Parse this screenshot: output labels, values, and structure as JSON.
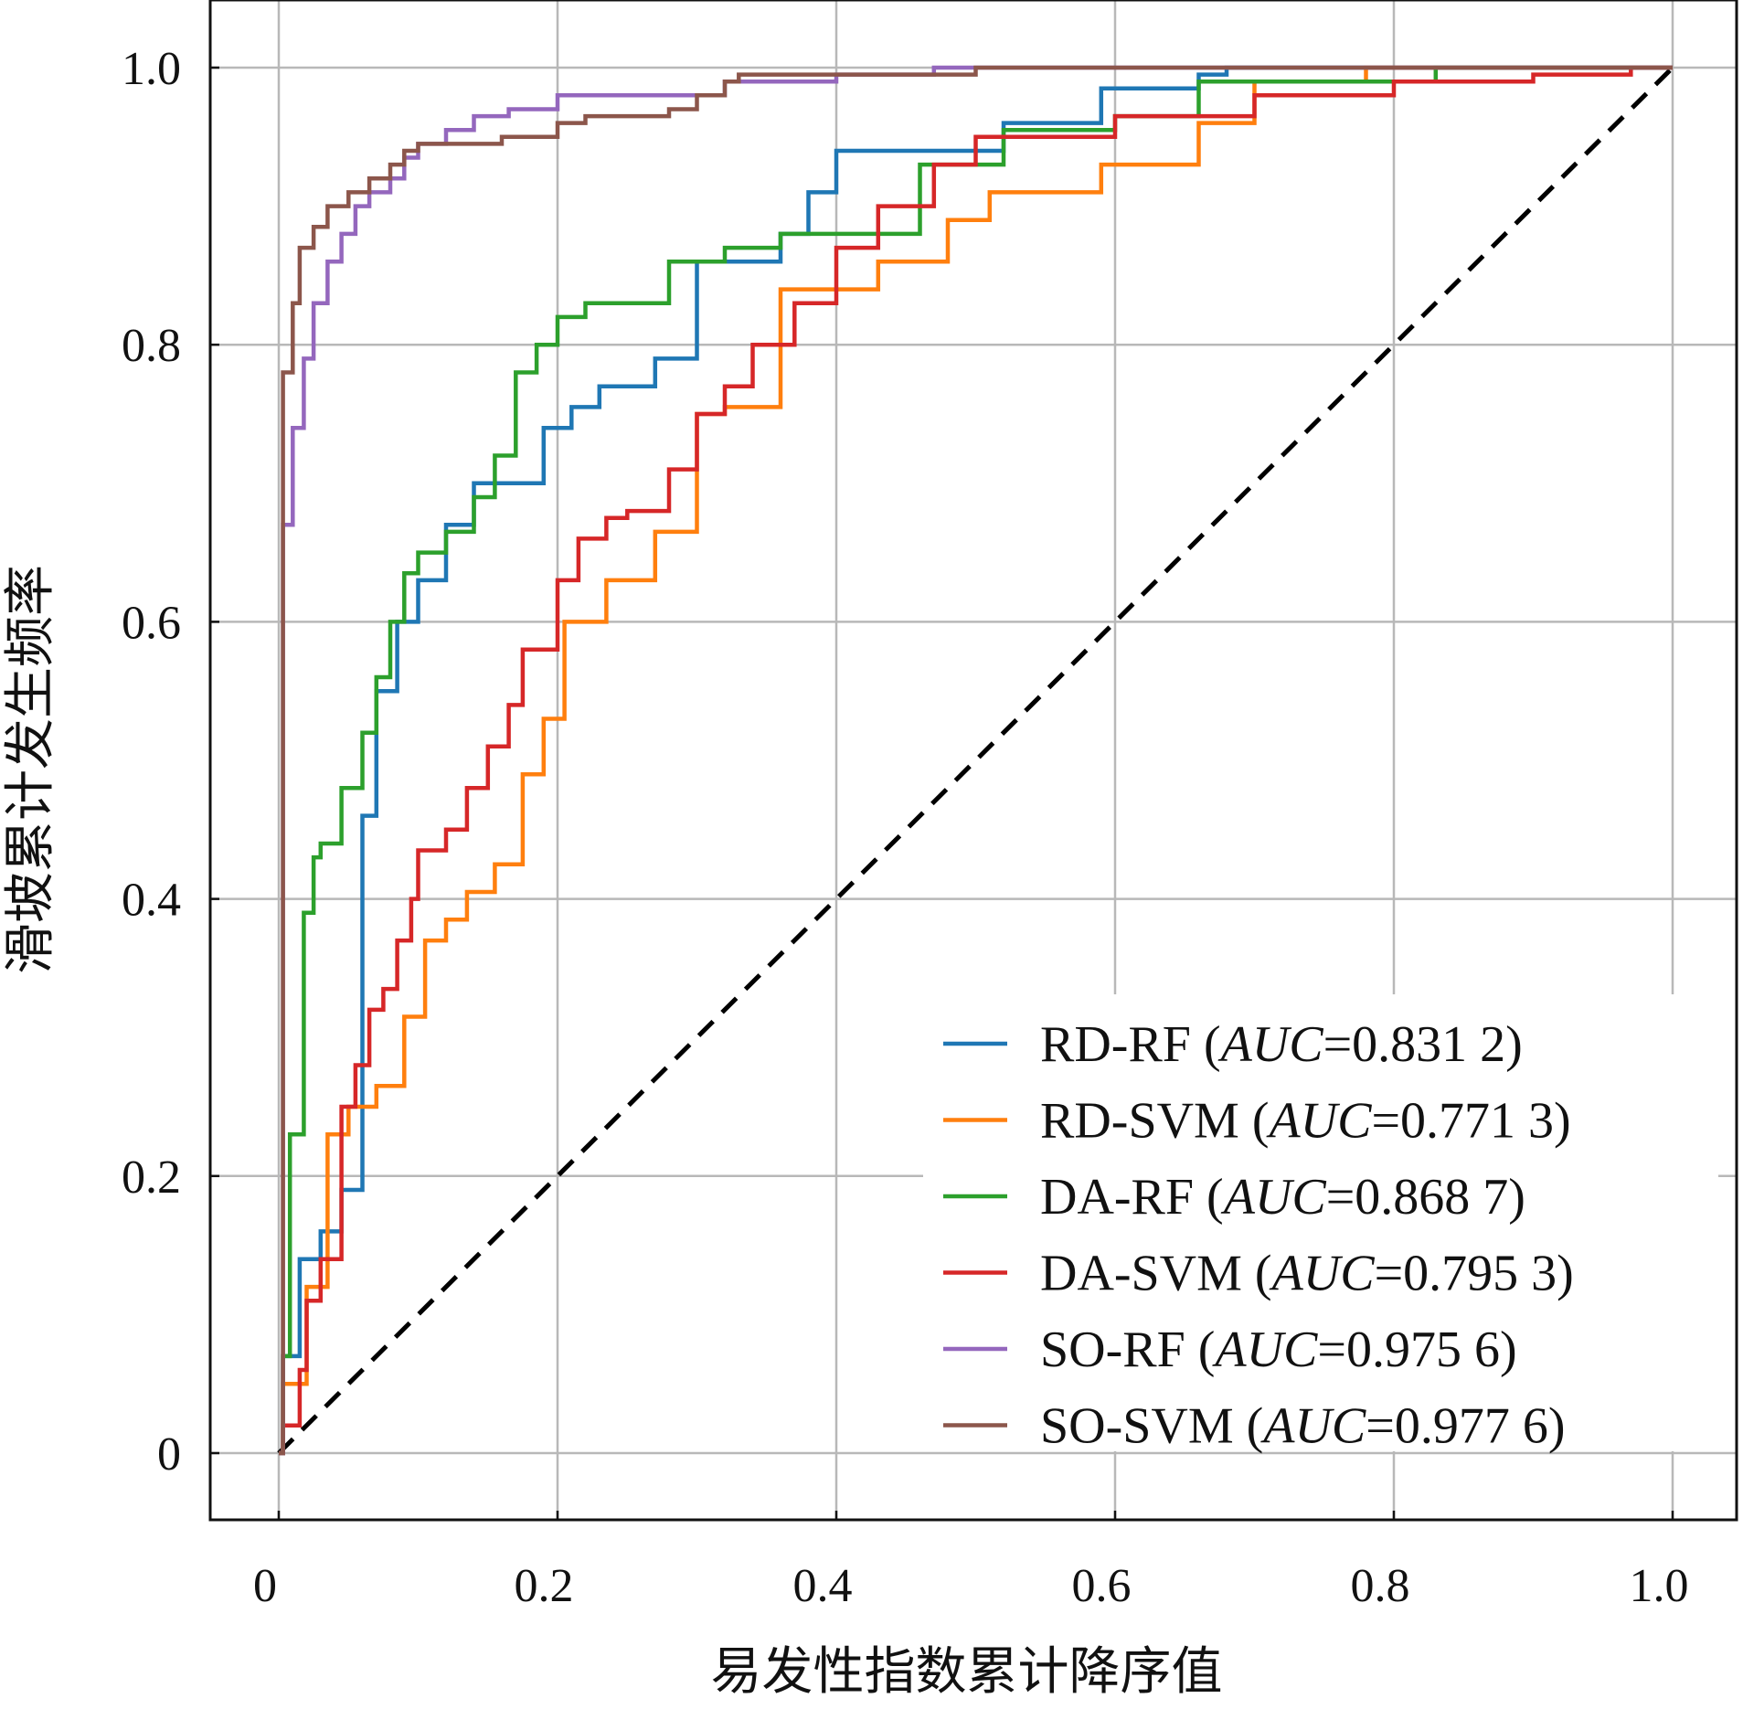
{
  "chart_data": {
    "type": "line",
    "xlabel": "易发性指数累计降序值",
    "ylabel": "滑坡累计发生频率",
    "xlim": [
      -0.05,
      1.05
    ],
    "ylim": [
      -0.05,
      1.03
    ],
    "xticks": [
      0,
      0.2,
      0.4,
      0.6,
      0.8,
      1.0
    ],
    "xtick_labels": [
      "0",
      "0.2",
      "0.4",
      "0.6",
      "0.8",
      "1.0"
    ],
    "yticks": [
      0,
      0.2,
      0.4,
      0.6,
      0.8,
      1.0
    ],
    "ytick_labels": [
      "0",
      "0.2",
      "0.4",
      "0.6",
      "0.8",
      "1.0"
    ],
    "grid": true,
    "legend_position": "bottom-right",
    "reference_line": {
      "name": "random",
      "color": "#000000",
      "style": "dashed",
      "x": [
        0,
        1
      ],
      "y": [
        0,
        1
      ]
    },
    "series": [
      {
        "name": "RD-RF",
        "legend_prefix": "RD-RF (",
        "auc_label": "AUC",
        "auc_value": "=0.831 2)",
        "color": "#1f77b4",
        "x": [
          0,
          0.003,
          0.003,
          0.015,
          0.015,
          0.03,
          0.03,
          0.045,
          0.045,
          0.06,
          0.06,
          0.07,
          0.07,
          0.085,
          0.085,
          0.1,
          0.1,
          0.12,
          0.12,
          0.14,
          0.14,
          0.19,
          0.19,
          0.21,
          0.21,
          0.23,
          0.23,
          0.27,
          0.27,
          0.3,
          0.3,
          0.36,
          0.36,
          0.38,
          0.38,
          0.4,
          0.4,
          0.52,
          0.52,
          0.59,
          0.59,
          0.66,
          0.66,
          0.68,
          0.68,
          1.0
        ],
        "y": [
          0,
          0,
          0.07,
          0.07,
          0.14,
          0.14,
          0.16,
          0.16,
          0.19,
          0.19,
          0.46,
          0.46,
          0.55,
          0.55,
          0.6,
          0.6,
          0.63,
          0.63,
          0.67,
          0.67,
          0.7,
          0.7,
          0.74,
          0.74,
          0.755,
          0.755,
          0.77,
          0.77,
          0.79,
          0.79,
          0.86,
          0.86,
          0.88,
          0.88,
          0.91,
          0.91,
          0.94,
          0.94,
          0.96,
          0.96,
          0.985,
          0.985,
          0.995,
          0.995,
          1.0,
          1.0
        ]
      },
      {
        "name": "RD-SVM",
        "legend_prefix": "RD-SVM (",
        "auc_label": "AUC",
        "auc_value": "=0.771 3)",
        "color": "#ff7f0e",
        "x": [
          0,
          0.003,
          0.003,
          0.02,
          0.02,
          0.035,
          0.035,
          0.05,
          0.05,
          0.07,
          0.07,
          0.09,
          0.09,
          0.105,
          0.105,
          0.12,
          0.12,
          0.135,
          0.135,
          0.155,
          0.155,
          0.175,
          0.175,
          0.19,
          0.19,
          0.205,
          0.205,
          0.235,
          0.235,
          0.27,
          0.27,
          0.3,
          0.3,
          0.32,
          0.32,
          0.36,
          0.36,
          0.43,
          0.43,
          0.48,
          0.48,
          0.51,
          0.51,
          0.59,
          0.59,
          0.66,
          0.66,
          0.7,
          0.7,
          0.78,
          0.78,
          1.0
        ],
        "y": [
          0,
          0,
          0.05,
          0.05,
          0.12,
          0.12,
          0.23,
          0.23,
          0.25,
          0.25,
          0.265,
          0.265,
          0.315,
          0.315,
          0.37,
          0.37,
          0.385,
          0.385,
          0.405,
          0.405,
          0.425,
          0.425,
          0.49,
          0.49,
          0.53,
          0.53,
          0.6,
          0.6,
          0.63,
          0.63,
          0.665,
          0.665,
          0.75,
          0.75,
          0.755,
          0.755,
          0.84,
          0.84,
          0.86,
          0.86,
          0.89,
          0.89,
          0.91,
          0.91,
          0.93,
          0.93,
          0.96,
          0.96,
          0.99,
          0.99,
          1.0,
          1.0
        ]
      },
      {
        "name": "DA-RF",
        "legend_prefix": "DA-RF (",
        "auc_label": "AUC",
        "auc_value": "=0.868 7)",
        "color": "#2ca02c",
        "x": [
          0,
          0.003,
          0.003,
          0.008,
          0.008,
          0.018,
          0.018,
          0.025,
          0.025,
          0.03,
          0.03,
          0.045,
          0.045,
          0.06,
          0.06,
          0.07,
          0.07,
          0.08,
          0.08,
          0.09,
          0.09,
          0.1,
          0.1,
          0.12,
          0.12,
          0.14,
          0.14,
          0.155,
          0.155,
          0.17,
          0.17,
          0.185,
          0.185,
          0.2,
          0.2,
          0.22,
          0.22,
          0.28,
          0.28,
          0.32,
          0.32,
          0.36,
          0.36,
          0.46,
          0.46,
          0.52,
          0.52,
          0.6,
          0.6,
          0.66,
          0.66,
          0.83,
          0.83,
          1.0
        ],
        "y": [
          0,
          0,
          0.07,
          0.07,
          0.23,
          0.23,
          0.39,
          0.39,
          0.43,
          0.43,
          0.44,
          0.44,
          0.48,
          0.48,
          0.52,
          0.52,
          0.56,
          0.56,
          0.6,
          0.6,
          0.635,
          0.635,
          0.65,
          0.65,
          0.665,
          0.665,
          0.69,
          0.69,
          0.72,
          0.72,
          0.78,
          0.78,
          0.8,
          0.8,
          0.82,
          0.82,
          0.83,
          0.83,
          0.86,
          0.86,
          0.87,
          0.87,
          0.88,
          0.88,
          0.93,
          0.93,
          0.955,
          0.955,
          0.965,
          0.965,
          0.99,
          0.99,
          1.0,
          1.0
        ]
      },
      {
        "name": "DA-SVM",
        "legend_prefix": "DA-SVM (",
        "auc_label": "AUC",
        "auc_value": "=0.795 3)",
        "color": "#d62728",
        "x": [
          0,
          0.003,
          0.003,
          0.015,
          0.015,
          0.02,
          0.02,
          0.03,
          0.03,
          0.045,
          0.045,
          0.055,
          0.055,
          0.065,
          0.065,
          0.075,
          0.075,
          0.085,
          0.085,
          0.095,
          0.095,
          0.1,
          0.1,
          0.12,
          0.12,
          0.135,
          0.135,
          0.15,
          0.15,
          0.165,
          0.165,
          0.175,
          0.175,
          0.2,
          0.2,
          0.215,
          0.215,
          0.235,
          0.235,
          0.25,
          0.25,
          0.28,
          0.28,
          0.3,
          0.3,
          0.32,
          0.32,
          0.34,
          0.34,
          0.37,
          0.37,
          0.4,
          0.4,
          0.43,
          0.43,
          0.47,
          0.47,
          0.5,
          0.5,
          0.6,
          0.6,
          0.7,
          0.7,
          0.8,
          0.8,
          0.9,
          0.9,
          0.97,
          0.97,
          1.0
        ],
        "y": [
          0,
          0,
          0.02,
          0.02,
          0.06,
          0.06,
          0.11,
          0.11,
          0.14,
          0.14,
          0.25,
          0.25,
          0.28,
          0.28,
          0.32,
          0.32,
          0.335,
          0.335,
          0.37,
          0.37,
          0.4,
          0.4,
          0.435,
          0.435,
          0.45,
          0.45,
          0.48,
          0.48,
          0.51,
          0.51,
          0.54,
          0.54,
          0.58,
          0.58,
          0.63,
          0.63,
          0.66,
          0.66,
          0.675,
          0.675,
          0.68,
          0.68,
          0.71,
          0.71,
          0.75,
          0.75,
          0.77,
          0.77,
          0.8,
          0.8,
          0.83,
          0.83,
          0.87,
          0.87,
          0.9,
          0.9,
          0.93,
          0.93,
          0.95,
          0.95,
          0.965,
          0.965,
          0.98,
          0.98,
          0.99,
          0.99,
          0.995,
          0.995,
          1.0,
          1.0
        ]
      },
      {
        "name": "SO-RF",
        "legend_prefix": "SO-RF (",
        "auc_label": "AUC",
        "auc_value": "=0.975 6)",
        "color": "#9467bd",
        "x": [
          0,
          0.003,
          0.003,
          0.01,
          0.01,
          0.018,
          0.018,
          0.025,
          0.025,
          0.035,
          0.035,
          0.045,
          0.045,
          0.055,
          0.055,
          0.065,
          0.065,
          0.08,
          0.08,
          0.09,
          0.09,
          0.1,
          0.1,
          0.12,
          0.12,
          0.14,
          0.14,
          0.165,
          0.165,
          0.2,
          0.2,
          0.32,
          0.32,
          0.4,
          0.4,
          0.47,
          0.47,
          0.74,
          0.74,
          1.0
        ],
        "y": [
          0,
          0,
          0.67,
          0.67,
          0.74,
          0.74,
          0.79,
          0.79,
          0.83,
          0.83,
          0.86,
          0.86,
          0.88,
          0.88,
          0.9,
          0.9,
          0.91,
          0.91,
          0.92,
          0.92,
          0.935,
          0.935,
          0.945,
          0.945,
          0.955,
          0.955,
          0.965,
          0.965,
          0.97,
          0.97,
          0.98,
          0.98,
          0.99,
          0.99,
          0.995,
          0.995,
          1.0,
          1.0,
          1.0,
          1.0
        ]
      },
      {
        "name": "SO-SVM",
        "legend_prefix": "SO-SVM (",
        "auc_label": "AUC",
        "auc_value": "=0.977 6)",
        "color": "#8c564b",
        "x": [
          0,
          0.003,
          0.003,
          0.01,
          0.01,
          0.015,
          0.015,
          0.025,
          0.025,
          0.035,
          0.035,
          0.05,
          0.05,
          0.065,
          0.065,
          0.08,
          0.08,
          0.09,
          0.09,
          0.1,
          0.1,
          0.16,
          0.16,
          0.2,
          0.2,
          0.22,
          0.22,
          0.28,
          0.28,
          0.3,
          0.3,
          0.32,
          0.32,
          0.33,
          0.33,
          0.5,
          0.5,
          1.0
        ],
        "y": [
          0,
          0,
          0.78,
          0.78,
          0.83,
          0.83,
          0.87,
          0.87,
          0.885,
          0.885,
          0.9,
          0.9,
          0.91,
          0.91,
          0.92,
          0.92,
          0.93,
          0.93,
          0.94,
          0.94,
          0.945,
          0.945,
          0.95,
          0.95,
          0.96,
          0.96,
          0.965,
          0.965,
          0.97,
          0.97,
          0.98,
          0.98,
          0.99,
          0.99,
          0.995,
          0.995,
          1.0,
          1.0
        ]
      }
    ]
  }
}
